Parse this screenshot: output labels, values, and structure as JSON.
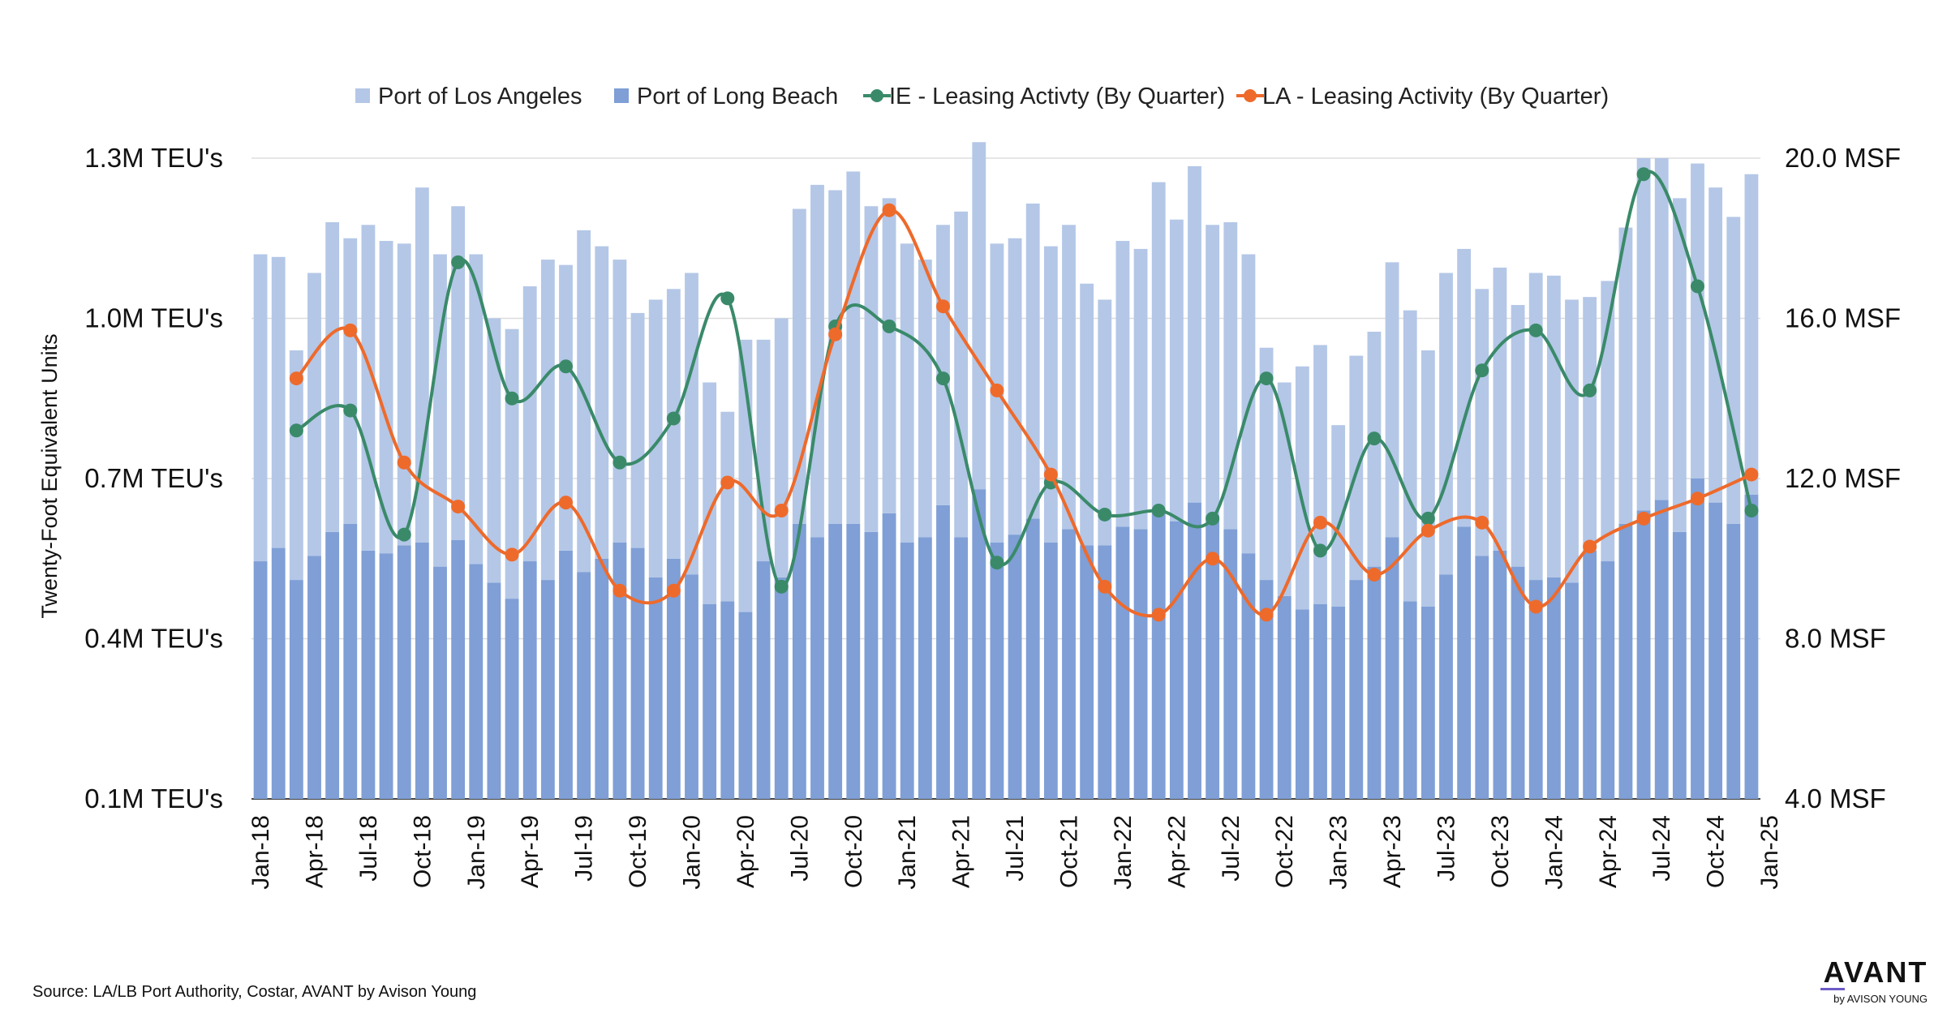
{
  "chart_data": {
    "type": "bar+line",
    "legend": {
      "placement": "top-center",
      "items": [
        {
          "label": "Port of Los Angeles",
          "marker": "square",
          "color": "#b4c7e7"
        },
        {
          "label": "Port of Long Beach",
          "marker": "square",
          "color": "#7f9fd6"
        },
        {
          "label": "IE - Leasing Activty (By Quarter)",
          "marker": "line-dot",
          "color": "#3a8a6a"
        },
        {
          "label": "LA - Leasing Activity (By Quarter)",
          "marker": "line-dot",
          "color": "#ee6a2b"
        }
      ]
    },
    "y_left": {
      "label": "Twenty-Foot Equivalent Units",
      "range": [
        0.1,
        1.3
      ],
      "ticks": [
        0.1,
        0.4,
        0.7,
        1.0,
        1.3
      ],
      "tick_labels": [
        "0.1M TEU's",
        "0.4M TEU's",
        "0.7M TEU's",
        "1.0M TEU's",
        "1.3M TEU's"
      ]
    },
    "y_right": {
      "range": [
        4,
        20
      ],
      "ticks": [
        4,
        8,
        12,
        16,
        20
      ],
      "tick_labels": [
        "4.0 MSF",
        "8.0 MSF",
        "12.0 MSF",
        "16.0 MSF",
        "20.0 MSF"
      ]
    },
    "grid": true,
    "x_tick_labels": [
      {
        "index": 0,
        "label": "Jan-18"
      },
      {
        "index": 3,
        "label": "Apr-18"
      },
      {
        "index": 6,
        "label": "Jul-18"
      },
      {
        "index": 9,
        "label": "Oct-18"
      },
      {
        "index": 12,
        "label": "Jan-19"
      },
      {
        "index": 15,
        "label": "Apr-19"
      },
      {
        "index": 18,
        "label": "Jul-19"
      },
      {
        "index": 21,
        "label": "Oct-19"
      },
      {
        "index": 24,
        "label": "Jan-20"
      },
      {
        "index": 27,
        "label": "Apr-20"
      },
      {
        "index": 30,
        "label": "Jul-20"
      },
      {
        "index": 33,
        "label": "Oct-20"
      },
      {
        "index": 36,
        "label": "Jan-21"
      },
      {
        "index": 39,
        "label": "Apr-21"
      },
      {
        "index": 42,
        "label": "Jul-21"
      },
      {
        "index": 45,
        "label": "Oct-21"
      },
      {
        "index": 48,
        "label": "Jan-22"
      },
      {
        "index": 51,
        "label": "Apr-22"
      },
      {
        "index": 54,
        "label": "Jul-22"
      },
      {
        "index": 57,
        "label": "Oct-22"
      },
      {
        "index": 60,
        "label": "Jan-23"
      },
      {
        "index": 63,
        "label": "Apr-23"
      },
      {
        "index": 66,
        "label": "Jul-23"
      },
      {
        "index": 69,
        "label": "Oct-23"
      },
      {
        "index": 72,
        "label": "Jan-24"
      },
      {
        "index": 75,
        "label": "Apr-24"
      },
      {
        "index": 78,
        "label": "Jul-24"
      },
      {
        "index": 81,
        "label": "Oct-24"
      },
      {
        "index": 84,
        "label": "Jan-25"
      }
    ],
    "series": [
      {
        "name": "Port of Long Beach",
        "type": "bar",
        "axis": "left",
        "color": "#7f9fd6",
        "values": [
          0.445,
          0.47,
          0.41,
          0.455,
          0.5,
          0.515,
          0.465,
          0.46,
          0.475,
          0.48,
          0.435,
          0.485,
          0.44,
          0.405,
          0.375,
          0.445,
          0.41,
          0.465,
          0.425,
          0.45,
          0.48,
          0.47,
          0.415,
          0.45,
          0.42,
          0.365,
          0.37,
          0.35,
          0.445,
          0.415,
          0.515,
          0.49,
          0.515,
          0.515,
          0.5,
          0.535,
          0.48,
          0.49,
          0.55,
          0.49,
          0.58,
          0.48,
          0.495,
          0.525,
          0.48,
          0.505,
          0.475,
          0.475,
          0.51,
          0.505,
          0.54,
          0.52,
          0.555,
          0.53,
          0.505,
          0.46,
          0.41,
          0.38,
          0.355,
          0.365,
          0.36,
          0.41,
          0.435,
          0.49,
          0.37,
          0.36,
          0.42,
          0.51,
          0.455,
          0.465,
          0.435,
          0.41,
          0.415,
          0.405,
          0.465,
          0.445,
          0.515,
          0.54,
          0.56,
          0.5,
          0.6,
          0.555,
          0.515,
          0.57
        ]
      },
      {
        "name": "Port of Los Angeles",
        "type": "bar",
        "axis": "left",
        "color": "#b4c7e7",
        "values": [
          0.575,
          0.545,
          0.43,
          0.53,
          0.58,
          0.535,
          0.61,
          0.585,
          0.565,
          0.665,
          0.585,
          0.625,
          0.58,
          0.495,
          0.505,
          0.515,
          0.6,
          0.535,
          0.64,
          0.585,
          0.53,
          0.44,
          0.52,
          0.505,
          0.565,
          0.415,
          0.355,
          0.51,
          0.415,
          0.485,
          0.59,
          0.66,
          0.625,
          0.66,
          0.61,
          0.59,
          0.56,
          0.52,
          0.525,
          0.61,
          0.65,
          0.56,
          0.555,
          0.59,
          0.555,
          0.57,
          0.49,
          0.46,
          0.535,
          0.525,
          0.615,
          0.565,
          0.63,
          0.545,
          0.575,
          0.56,
          0.435,
          0.4,
          0.455,
          0.485,
          0.34,
          0.42,
          0.44,
          0.515,
          0.545,
          0.48,
          0.565,
          0.52,
          0.5,
          0.53,
          0.49,
          0.575,
          0.565,
          0.53,
          0.475,
          0.525,
          0.555,
          0.66,
          0.64,
          0.625,
          0.59,
          0.59,
          0.575,
          0.6
        ]
      },
      {
        "name": "IE - Leasing Activty (By Quarter)",
        "type": "line",
        "axis": "right",
        "color": "#3a8a6a",
        "points": [
          {
            "x": 2,
            "y": 13.2
          },
          {
            "x": 5,
            "y": 13.7
          },
          {
            "x": 8,
            "y": 10.6
          },
          {
            "x": 11,
            "y": 17.4
          },
          {
            "x": 14,
            "y": 14.0
          },
          {
            "x": 17,
            "y": 14.8
          },
          {
            "x": 20,
            "y": 12.4
          },
          {
            "x": 23,
            "y": 13.5
          },
          {
            "x": 26,
            "y": 16.5
          },
          {
            "x": 29,
            "y": 9.3
          },
          {
            "x": 32,
            "y": 15.8
          },
          {
            "x": 35,
            "y": 15.8
          },
          {
            "x": 38,
            "y": 14.5
          },
          {
            "x": 41,
            "y": 9.9
          },
          {
            "x": 44,
            "y": 11.9
          },
          {
            "x": 47,
            "y": 11.1
          },
          {
            "x": 50,
            "y": 11.2
          },
          {
            "x": 53,
            "y": 11.0
          },
          {
            "x": 56,
            "y": 14.5
          },
          {
            "x": 59,
            "y": 10.2
          },
          {
            "x": 62,
            "y": 13.0
          },
          {
            "x": 65,
            "y": 11.0
          },
          {
            "x": 68,
            "y": 14.7
          },
          {
            "x": 71,
            "y": 15.7
          },
          {
            "x": 74,
            "y": 14.2
          },
          {
            "x": 77,
            "y": 19.6
          },
          {
            "x": 80,
            "y": 16.8
          },
          {
            "x": 83,
            "y": 11.2
          }
        ]
      },
      {
        "name": "LA - Leasing Activity (By Quarter)",
        "type": "line",
        "axis": "right",
        "color": "#ee6a2b",
        "points": [
          {
            "x": 2,
            "y": 14.5
          },
          {
            "x": 5,
            "y": 15.7
          },
          {
            "x": 8,
            "y": 12.4
          },
          {
            "x": 11,
            "y": 11.3
          },
          {
            "x": 14,
            "y": 10.1
          },
          {
            "x": 17,
            "y": 11.4
          },
          {
            "x": 20,
            "y": 9.2
          },
          {
            "x": 23,
            "y": 9.2
          },
          {
            "x": 26,
            "y": 11.9
          },
          {
            "x": 29,
            "y": 11.2
          },
          {
            "x": 32,
            "y": 15.6
          },
          {
            "x": 35,
            "y": 18.7
          },
          {
            "x": 38,
            "y": 16.3
          },
          {
            "x": 41,
            "y": 14.2
          },
          {
            "x": 44,
            "y": 12.1
          },
          {
            "x": 47,
            "y": 9.3
          },
          {
            "x": 50,
            "y": 8.6
          },
          {
            "x": 53,
            "y": 10.0
          },
          {
            "x": 56,
            "y": 8.6
          },
          {
            "x": 59,
            "y": 10.9
          },
          {
            "x": 62,
            "y": 9.6
          },
          {
            "x": 65,
            "y": 10.7
          },
          {
            "x": 68,
            "y": 10.9
          },
          {
            "x": 71,
            "y": 8.8
          },
          {
            "x": 74,
            "y": 10.3
          },
          {
            "x": 77,
            "y": 11.0
          },
          {
            "x": 80,
            "y": 11.5
          },
          {
            "x": 83,
            "y": 12.1
          }
        ]
      }
    ]
  },
  "footer": {
    "source": "Source: LA/LB Port Authority, Costar, AVANT by Avison Young"
  },
  "brand": {
    "word": "AVANT",
    "sub": "by AVISON YOUNG"
  }
}
